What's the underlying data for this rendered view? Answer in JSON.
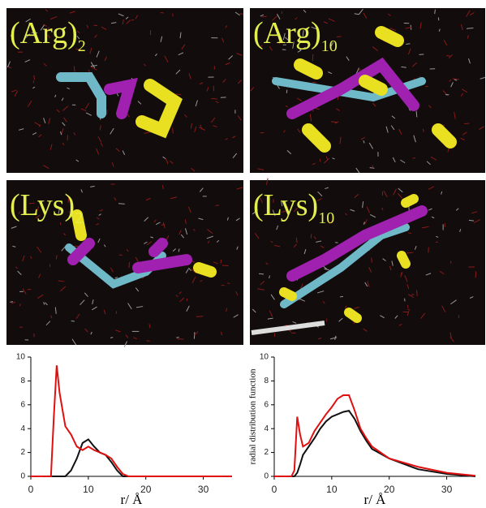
{
  "panels": [
    {
      "label": "(Arg)",
      "subscript": "2"
    },
    {
      "label": "(Arg)",
      "subscript": "10"
    },
    {
      "label": "(Lys)",
      "subscript": "2"
    },
    {
      "label": "(Lys)",
      "subscript": "10"
    }
  ],
  "chart_data": [
    {
      "type": "line",
      "xlabel": "r/ Å",
      "x": [
        0,
        3,
        3.5,
        4,
        4.5,
        5,
        6,
        7,
        8,
        9,
        10,
        11,
        12,
        13,
        14,
        15,
        16,
        17,
        20,
        25,
        30,
        35
      ],
      "series": [
        {
          "color": "#111111",
          "values": [
            0,
            0,
            0,
            0,
            0,
            0,
            0,
            0.5,
            1.5,
            2.8,
            3.1,
            2.5,
            2,
            1.8,
            1.2,
            0.5,
            0,
            0,
            null,
            null,
            null,
            null
          ]
        },
        {
          "color": "#e01010",
          "values": [
            0,
            0,
            0,
            5,
            9.3,
            7,
            4.2,
            3.5,
            2.5,
            2.2,
            2.5,
            2.2,
            2,
            1.8,
            1.5,
            0.8,
            0.2,
            0,
            0,
            0,
            0,
            0
          ]
        }
      ],
      "xlim": [
        0,
        35
      ],
      "xticks": [
        0,
        10,
        20,
        30
      ],
      "ylim": [
        0,
        10
      ],
      "yticks": [
        0,
        2,
        4,
        6,
        8,
        10
      ]
    },
    {
      "type": "line",
      "xlabel": "r/ Å",
      "ylabel": "radial distribution function",
      "x": [
        0,
        3,
        3.5,
        4,
        4.5,
        5,
        6,
        7,
        8,
        9,
        10,
        11,
        12,
        13,
        14,
        15,
        16,
        17,
        20,
        25,
        30,
        35
      ],
      "series": [
        {
          "color": "#111111",
          "values": [
            0,
            0,
            0,
            0.3,
            1,
            1.8,
            2.5,
            3.2,
            4,
            4.6,
            5,
            5.2,
            5.4,
            5.5,
            4.8,
            3.8,
            3,
            2.3,
            1.5,
            0.6,
            0.2,
            0
          ]
        },
        {
          "color": "#e01010",
          "values": [
            0,
            0,
            0.5,
            5,
            3.5,
            2.5,
            2.8,
            3.8,
            4.5,
            5.2,
            5.8,
            6.5,
            6.8,
            6.8,
            5.5,
            4,
            3.2,
            2.5,
            1.5,
            0.8,
            0.3,
            0.05
          ]
        }
      ],
      "xlim": [
        0,
        35
      ],
      "xticks": [
        0,
        10,
        20,
        30
      ],
      "ylim": [
        0,
        10
      ],
      "yticks": [
        0,
        2,
        4,
        6,
        8,
        10
      ]
    }
  ]
}
